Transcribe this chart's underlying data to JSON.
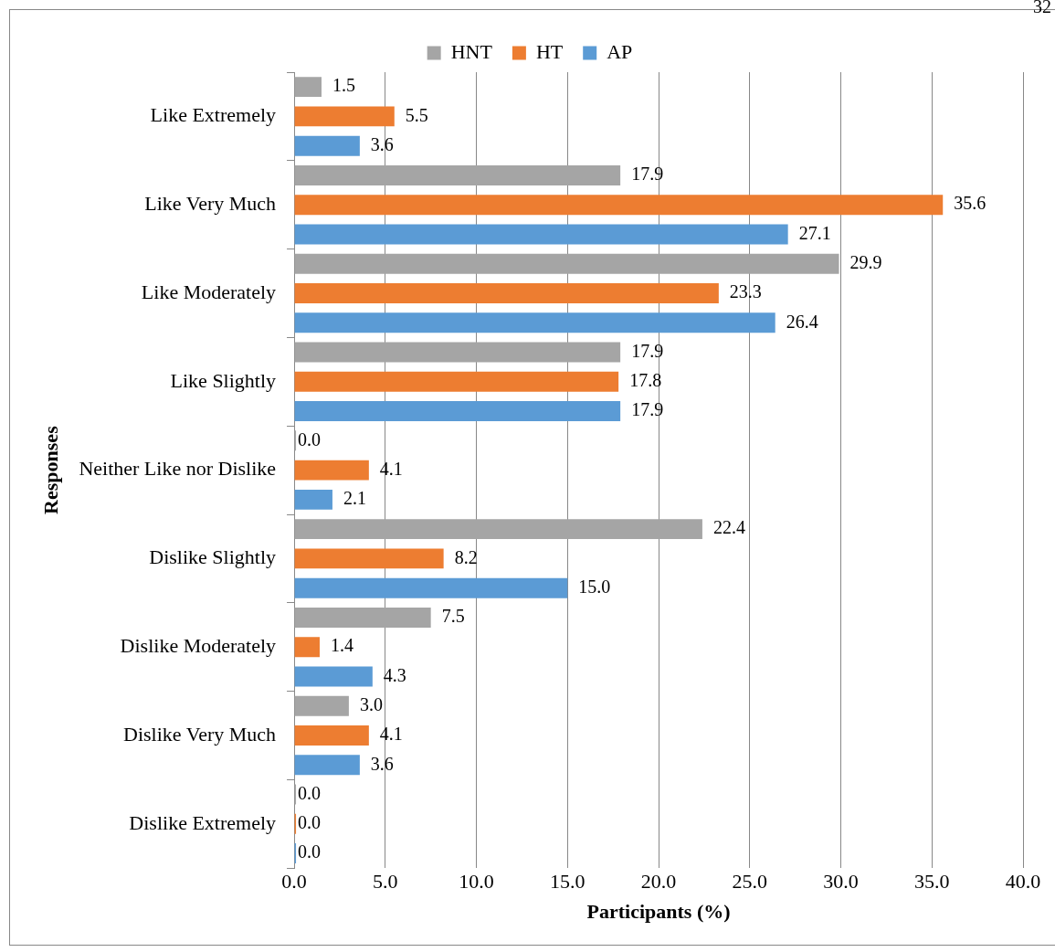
{
  "chart_data": {
    "type": "bar",
    "orientation": "horizontal",
    "categories": [
      "Like Extremely",
      "Like Very Much",
      "Like Moderately",
      "Like Slightly",
      "Neither Like nor Dislike",
      "Dislike Slightly",
      "Dislike Moderately",
      "Dislike Very Much",
      "Dislike Extremely"
    ],
    "series": [
      {
        "name": "HNT",
        "color": "#a5a5a5",
        "values": [
          1.5,
          17.9,
          29.9,
          17.9,
          0.0,
          22.4,
          7.5,
          3.0,
          0.0
        ],
        "value_labels": [
          "1.5",
          "17.9",
          "29.9",
          "17.9",
          "0.0",
          "22.4",
          "7.5",
          "3.0",
          "0.0"
        ]
      },
      {
        "name": "HT",
        "color": "#ed7d31",
        "values": [
          5.5,
          35.6,
          23.3,
          17.8,
          4.1,
          8.2,
          1.4,
          4.1,
          0.0
        ],
        "value_labels": [
          "5.5",
          "35.6",
          "23.3",
          "17.8",
          "4.1",
          "8.2",
          "1.4",
          "4.1",
          "0.0"
        ]
      },
      {
        "name": "AP",
        "color": "#5b9bd5",
        "values": [
          3.6,
          27.1,
          26.4,
          17.9,
          2.1,
          15.0,
          4.3,
          3.6,
          0.0
        ],
        "value_labels": [
          "3.6",
          "27.1",
          "26.4",
          "17.9",
          "2.1",
          "15.0",
          "4.3",
          "3.6",
          "0.0"
        ]
      }
    ],
    "xlim": [
      0,
      40
    ],
    "xticks": [
      {
        "value": 0,
        "label": "0.0"
      },
      {
        "value": 5,
        "label": "5.0"
      },
      {
        "value": 10,
        "label": "10.0"
      },
      {
        "value": 15,
        "label": "15.0"
      },
      {
        "value": 20,
        "label": "20.0"
      },
      {
        "value": 25,
        "label": "25.0"
      },
      {
        "value": 30,
        "label": "30.0"
      },
      {
        "value": 35,
        "label": "35.0"
      },
      {
        "value": 40,
        "label": "40.0"
      }
    ],
    "xlabel": "Participants (%)",
    "ylabel": "Responses",
    "grid": "x",
    "legend": "top",
    "annotations": [
      "32"
    ]
  }
}
